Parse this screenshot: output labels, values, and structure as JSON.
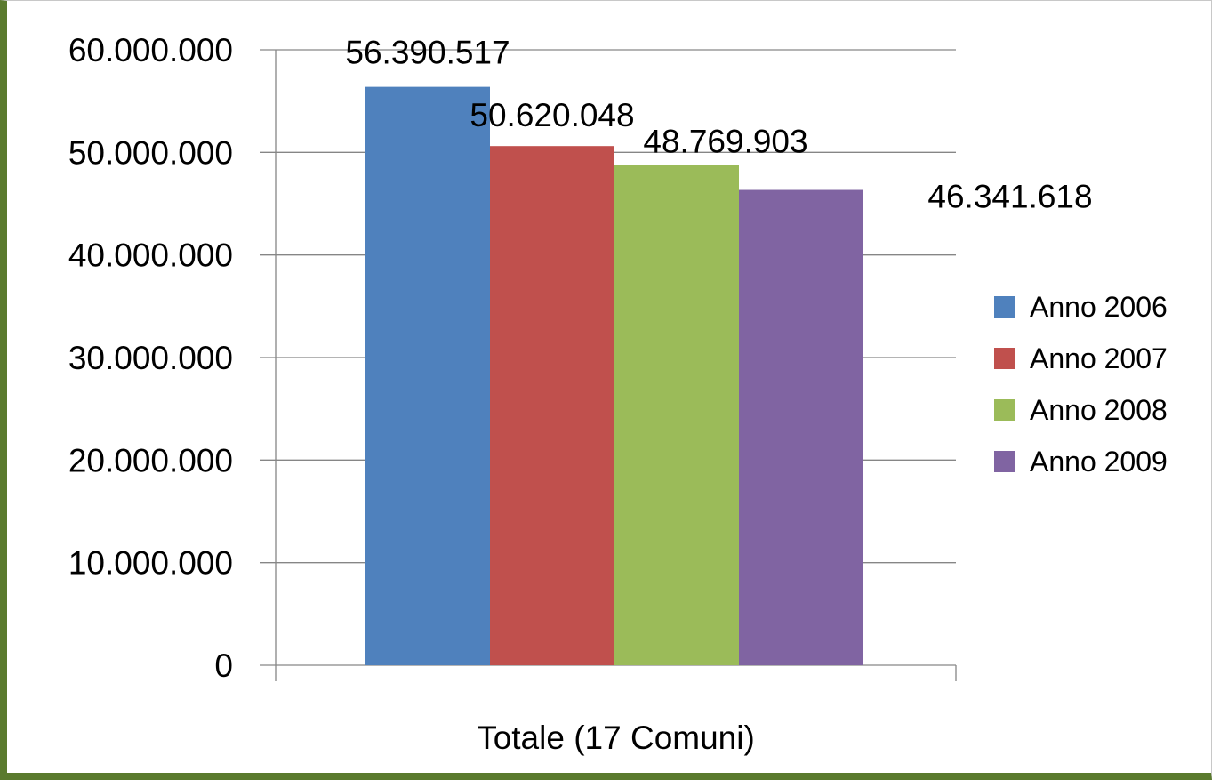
{
  "chart_data": {
    "type": "bar",
    "categories": [
      "Totale (17 Comuni)"
    ],
    "series": [
      {
        "name": "Anno 2006",
        "values": [
          56390517
        ],
        "label": "56.390.517",
        "color": "#4f81bd"
      },
      {
        "name": "Anno 2007",
        "values": [
          50620048
        ],
        "label": "50.620.048",
        "color": "#c0504d"
      },
      {
        "name": "Anno 2008",
        "values": [
          48769903
        ],
        "label": "48.769.903",
        "color": "#9bbb59"
      },
      {
        "name": "Anno 2009",
        "values": [
          46341618
        ],
        "label": "46.341.618",
        "color": "#8064a2"
      }
    ],
    "y_ticks": [
      "0",
      "10.000.000",
      "20.000.000",
      "30.000.000",
      "40.000.000",
      "50.000.000",
      "60.000.000"
    ],
    "ylim": [
      0,
      60000000
    ],
    "grid": true,
    "legend": "right",
    "title": "",
    "xlabel": "",
    "ylabel": ""
  }
}
